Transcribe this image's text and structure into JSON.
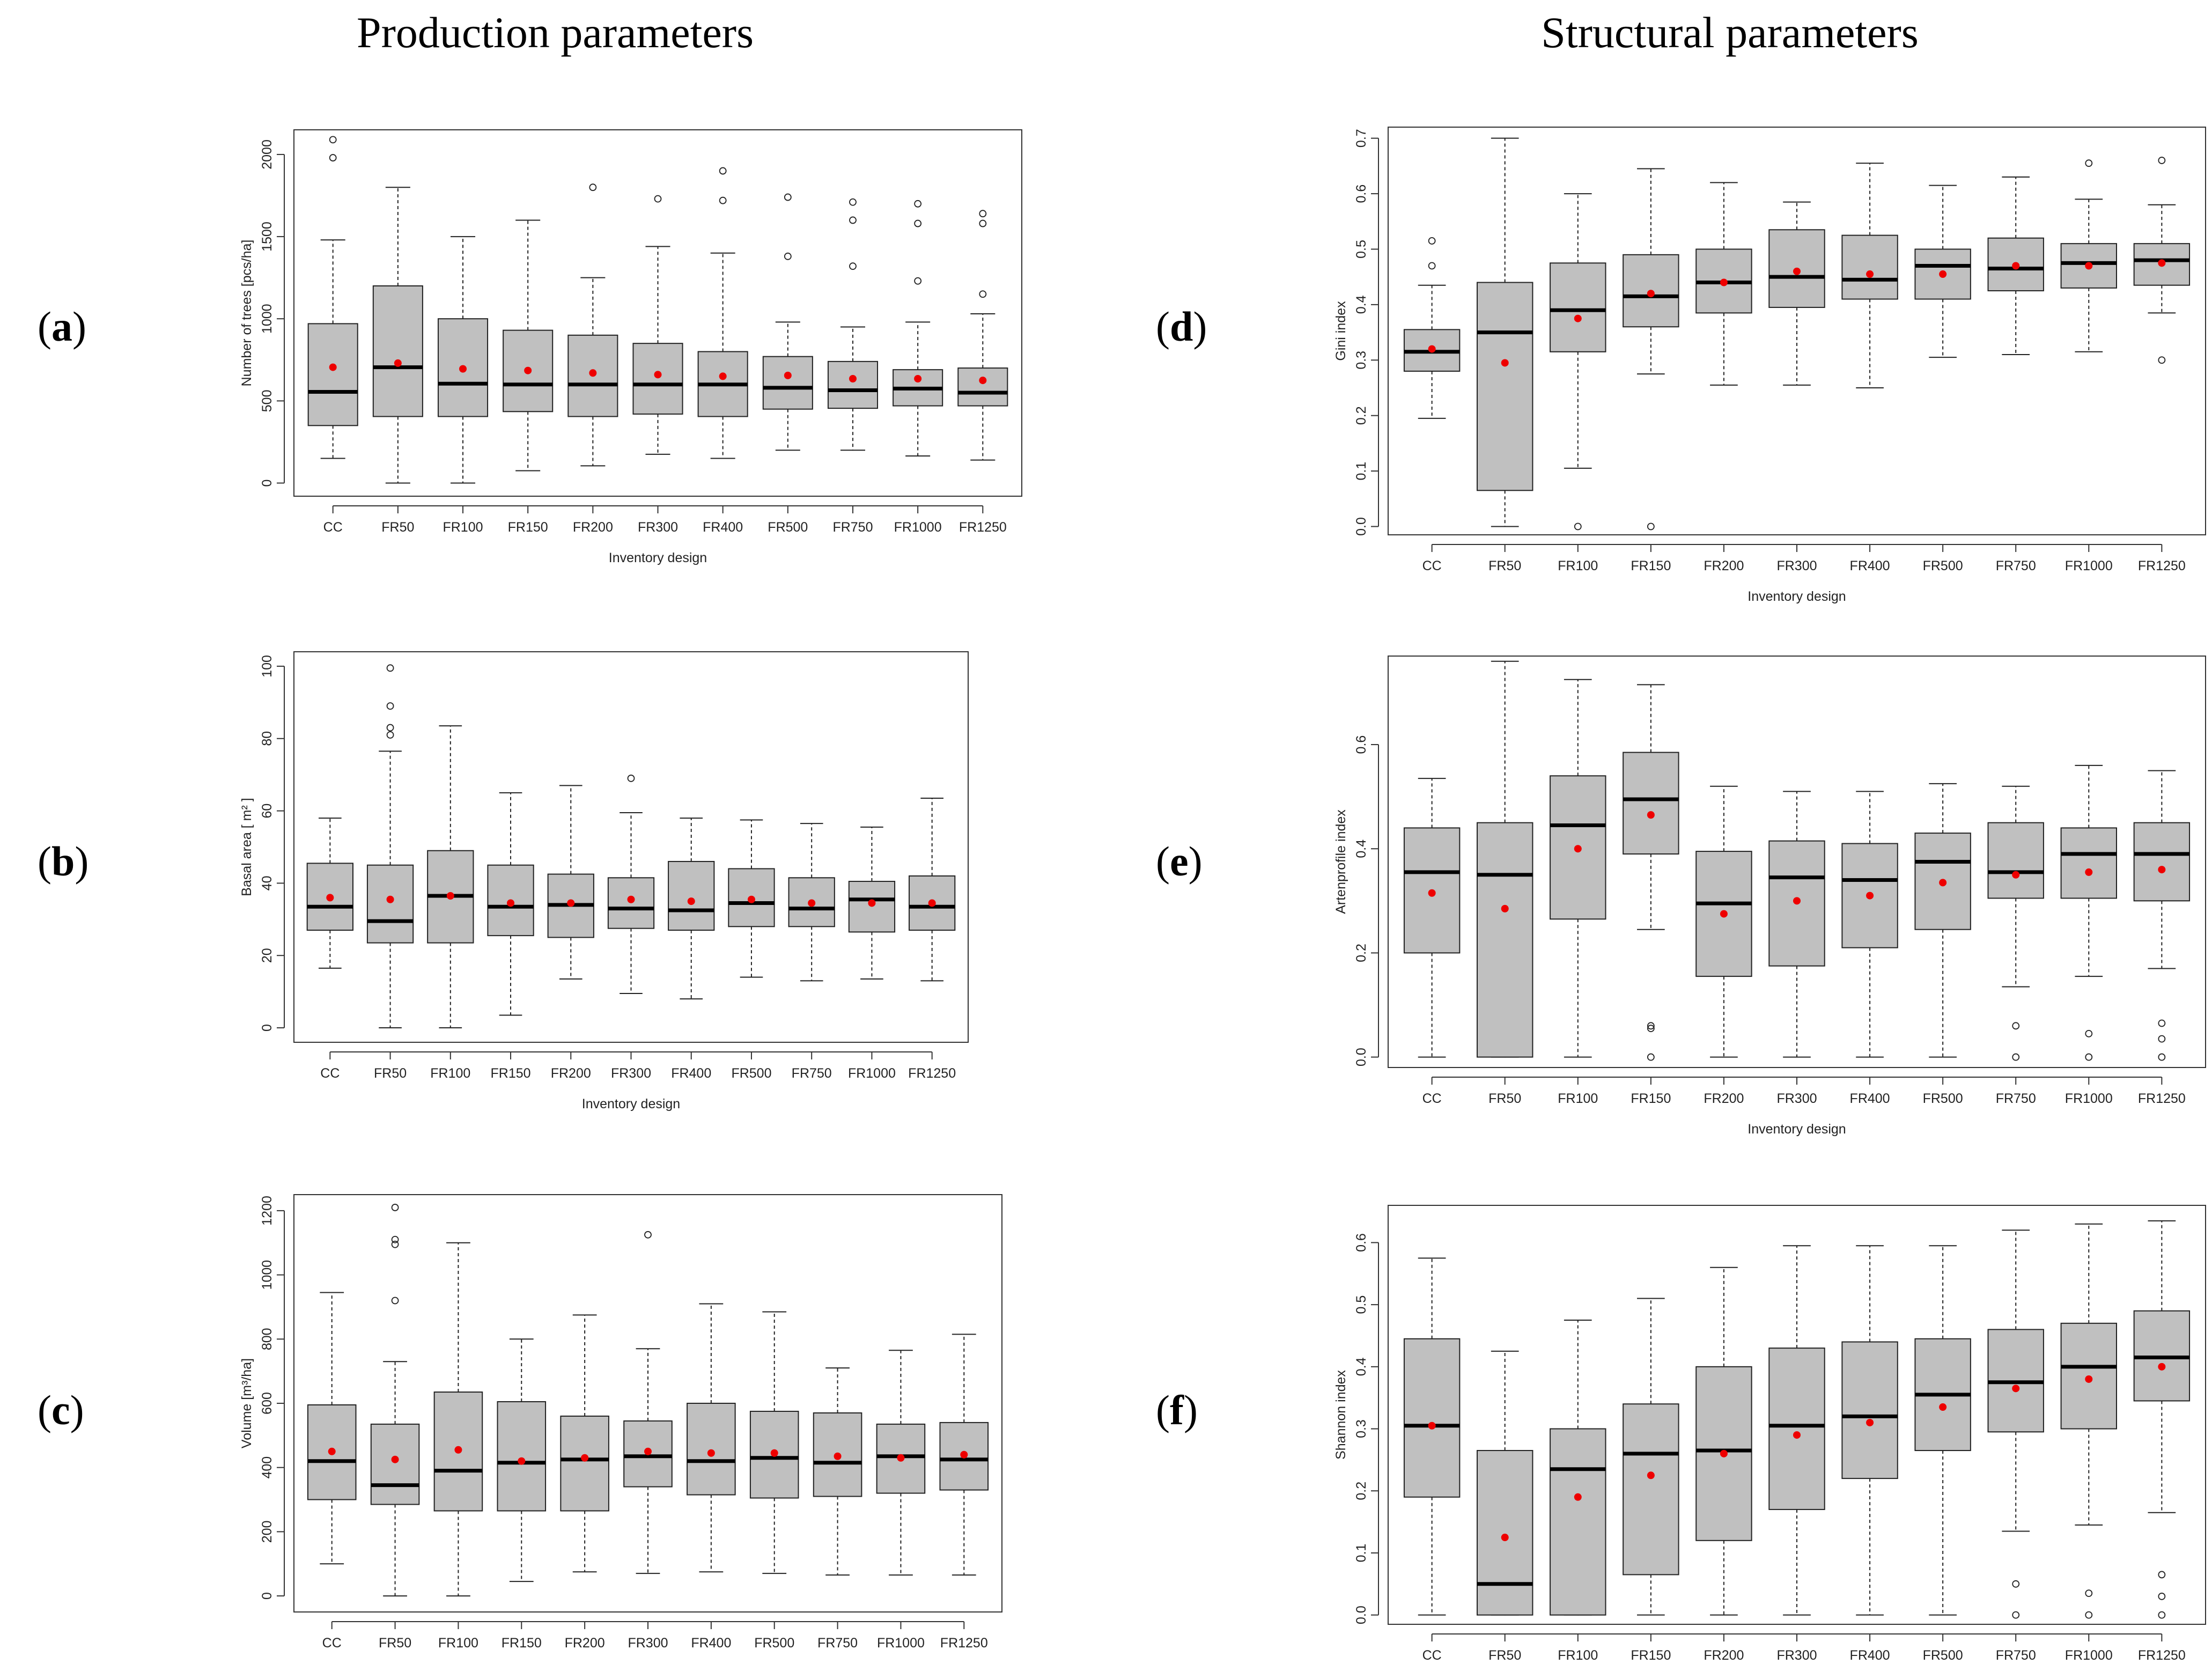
{
  "headings": {
    "left": "Production parameters",
    "right": "Structural parameters"
  },
  "colors": {
    "box_fill": "#c0c0c0",
    "median": "#000000",
    "mean": "#ee0000",
    "frame": "#333333"
  },
  "chart_data": [
    {
      "id": "a",
      "panel_label": "a",
      "type": "boxplot",
      "xlabel": "Inventory design",
      "ylabel": "Number of trees [pcs/ha]",
      "yticks": [
        0,
        500,
        1000,
        1500,
        2000
      ],
      "ylim": [
        -80,
        2150
      ],
      "categories": [
        "CC",
        "FR50",
        "FR100",
        "FR150",
        "FR200",
        "FR300",
        "FR400",
        "FR500",
        "FR750",
        "FR1000",
        "FR1250"
      ],
      "boxes": [
        {
          "min": 150,
          "q1": 350,
          "median": 555,
          "q3": 970,
          "max": 1480,
          "mean": 705,
          "outliers": [
            1980,
            2090
          ]
        },
        {
          "min": 0,
          "q1": 405,
          "median": 705,
          "q3": 1200,
          "max": 1800,
          "mean": 730,
          "outliers": []
        },
        {
          "min": 0,
          "q1": 405,
          "median": 605,
          "q3": 1000,
          "max": 1500,
          "mean": 695,
          "outliers": []
        },
        {
          "min": 75,
          "q1": 435,
          "median": 600,
          "q3": 930,
          "max": 1600,
          "mean": 685,
          "outliers": []
        },
        {
          "min": 105,
          "q1": 405,
          "median": 600,
          "q3": 900,
          "max": 1250,
          "mean": 670,
          "outliers": [
            1800
          ]
        },
        {
          "min": 175,
          "q1": 420,
          "median": 600,
          "q3": 850,
          "max": 1440,
          "mean": 660,
          "outliers": [
            1730
          ]
        },
        {
          "min": 150,
          "q1": 405,
          "median": 600,
          "q3": 800,
          "max": 1400,
          "mean": 650,
          "outliers": [
            1720,
            1900
          ]
        },
        {
          "min": 200,
          "q1": 450,
          "median": 580,
          "q3": 770,
          "max": 980,
          "mean": 655,
          "outliers": [
            1380,
            1740
          ]
        },
        {
          "min": 200,
          "q1": 455,
          "median": 565,
          "q3": 740,
          "max": 950,
          "mean": 635,
          "outliers": [
            1320,
            1600,
            1710
          ]
        },
        {
          "min": 165,
          "q1": 470,
          "median": 575,
          "q3": 690,
          "max": 980,
          "mean": 635,
          "outliers": [
            1230,
            1580,
            1700
          ]
        },
        {
          "min": 140,
          "q1": 470,
          "median": 550,
          "q3": 700,
          "max": 1030,
          "mean": 625,
          "outliers": [
            1150,
            1580,
            1640
          ]
        }
      ]
    },
    {
      "id": "b",
      "panel_label": "b",
      "type": "boxplot",
      "xlabel": "Inventory design",
      "ylabel": "Basal area [ m² ]",
      "yticks": [
        0,
        20,
        40,
        60,
        80,
        100
      ],
      "ylim": [
        -4,
        104
      ],
      "categories": [
        "CC",
        "FR50",
        "FR100",
        "FR150",
        "FR200",
        "FR300",
        "FR400",
        "FR500",
        "FR750",
        "FR1000",
        "FR1250"
      ],
      "boxes": [
        {
          "min": 16.5,
          "q1": 27,
          "median": 33.5,
          "q3": 45.5,
          "max": 58,
          "mean": 36,
          "outliers": []
        },
        {
          "min": 0,
          "q1": 23.5,
          "median": 29.5,
          "q3": 45,
          "max": 76.5,
          "mean": 35.5,
          "outliers": [
            81,
            83,
            89,
            99.5
          ]
        },
        {
          "min": 0,
          "q1": 23.5,
          "median": 36.5,
          "q3": 49,
          "max": 83.5,
          "mean": 36.5,
          "outliers": []
        },
        {
          "min": 3.5,
          "q1": 25.5,
          "median": 33.5,
          "q3": 45,
          "max": 65,
          "mean": 34.5,
          "outliers": []
        },
        {
          "min": 13.5,
          "q1": 25,
          "median": 34,
          "q3": 42.5,
          "max": 67,
          "mean": 34.5,
          "outliers": []
        },
        {
          "min": 9.5,
          "q1": 27.5,
          "median": 33,
          "q3": 41.5,
          "max": 59.5,
          "mean": 35.5,
          "outliers": [
            69
          ]
        },
        {
          "min": 8,
          "q1": 27,
          "median": 32.5,
          "q3": 46,
          "max": 58,
          "mean": 35,
          "outliers": []
        },
        {
          "min": 14,
          "q1": 28,
          "median": 34.5,
          "q3": 44,
          "max": 57.5,
          "mean": 35.5,
          "outliers": []
        },
        {
          "min": 13,
          "q1": 28,
          "median": 33,
          "q3": 41.5,
          "max": 56.5,
          "mean": 34.5,
          "outliers": []
        },
        {
          "min": 13.5,
          "q1": 26.5,
          "median": 35.5,
          "q3": 40.5,
          "max": 55.5,
          "mean": 34.5,
          "outliers": []
        },
        {
          "min": 13,
          "q1": 27,
          "median": 33.5,
          "q3": 42,
          "max": 63.5,
          "mean": 34.5,
          "outliers": []
        }
      ]
    },
    {
      "id": "c",
      "panel_label": "c",
      "type": "boxplot",
      "xlabel": "Inventory design",
      "ylabel": "Volume [m³/ha]",
      "yticks": [
        0,
        200,
        400,
        600,
        800,
        1000,
        1200
      ],
      "ylim": [
        -50,
        1250
      ],
      "categories": [
        "CC",
        "FR50",
        "FR100",
        "FR150",
        "FR200",
        "FR300",
        "FR400",
        "FR500",
        "FR750",
        "FR1000",
        "FR1250"
      ],
      "boxes": [
        {
          "min": 100,
          "q1": 300,
          "median": 420,
          "q3": 595,
          "max": 945,
          "mean": 450,
          "outliers": []
        },
        {
          "min": 0,
          "q1": 285,
          "median": 345,
          "q3": 535,
          "max": 730,
          "mean": 425,
          "outliers": [
            920,
            1095,
            1110,
            1210
          ]
        },
        {
          "min": 0,
          "q1": 265,
          "median": 390,
          "q3": 635,
          "max": 1100,
          "mean": 455,
          "outliers": []
        },
        {
          "min": 45,
          "q1": 265,
          "median": 415,
          "q3": 605,
          "max": 800,
          "mean": 420,
          "outliers": []
        },
        {
          "min": 75,
          "q1": 265,
          "median": 425,
          "q3": 560,
          "max": 875,
          "mean": 430,
          "outliers": []
        },
        {
          "min": 70,
          "q1": 340,
          "median": 435,
          "q3": 545,
          "max": 770,
          "mean": 450,
          "outliers": [
            1125
          ]
        },
        {
          "min": 75,
          "q1": 315,
          "median": 420,
          "q3": 600,
          "max": 910,
          "mean": 445,
          "outliers": []
        },
        {
          "min": 70,
          "q1": 305,
          "median": 430,
          "q3": 575,
          "max": 885,
          "mean": 445,
          "outliers": []
        },
        {
          "min": 65,
          "q1": 310,
          "median": 415,
          "q3": 570,
          "max": 710,
          "mean": 435,
          "outliers": []
        },
        {
          "min": 65,
          "q1": 320,
          "median": 435,
          "q3": 535,
          "max": 765,
          "mean": 430,
          "outliers": []
        },
        {
          "min": 65,
          "q1": 330,
          "median": 425,
          "q3": 540,
          "max": 815,
          "mean": 440,
          "outliers": []
        }
      ]
    },
    {
      "id": "d",
      "panel_label": "d",
      "type": "boxplot",
      "xlabel": "Inventory design",
      "ylabel": "Gini index",
      "yticks": [
        0.0,
        0.1,
        0.2,
        0.3,
        0.4,
        0.5,
        0.6,
        0.7
      ],
      "ylim": [
        -0.015,
        0.72
      ],
      "categories": [
        "CC",
        "FR50",
        "FR100",
        "FR150",
        "FR200",
        "FR300",
        "FR400",
        "FR500",
        "FR750",
        "FR1000",
        "FR1250"
      ],
      "boxes": [
        {
          "min": 0.195,
          "q1": 0.28,
          "median": 0.315,
          "q3": 0.355,
          "max": 0.435,
          "mean": 0.32,
          "outliers": [
            0.47,
            0.515
          ]
        },
        {
          "min": 0.0,
          "q1": 0.065,
          "median": 0.35,
          "q3": 0.44,
          "max": 0.7,
          "mean": 0.295,
          "outliers": []
        },
        {
          "min": 0.105,
          "q1": 0.315,
          "median": 0.39,
          "q3": 0.475,
          "max": 0.6,
          "mean": 0.375,
          "outliers": [
            0.0
          ]
        },
        {
          "min": 0.275,
          "q1": 0.36,
          "median": 0.415,
          "q3": 0.49,
          "max": 0.645,
          "mean": 0.42,
          "outliers": [
            0.0
          ]
        },
        {
          "min": 0.255,
          "q1": 0.385,
          "median": 0.44,
          "q3": 0.5,
          "max": 0.62,
          "mean": 0.44,
          "outliers": []
        },
        {
          "min": 0.255,
          "q1": 0.395,
          "median": 0.45,
          "q3": 0.535,
          "max": 0.585,
          "mean": 0.46,
          "outliers": []
        },
        {
          "min": 0.25,
          "q1": 0.41,
          "median": 0.445,
          "q3": 0.525,
          "max": 0.655,
          "mean": 0.455,
          "outliers": []
        },
        {
          "min": 0.305,
          "q1": 0.41,
          "median": 0.47,
          "q3": 0.5,
          "max": 0.615,
          "mean": 0.455,
          "outliers": []
        },
        {
          "min": 0.31,
          "q1": 0.425,
          "median": 0.465,
          "q3": 0.52,
          "max": 0.63,
          "mean": 0.47,
          "outliers": []
        },
        {
          "min": 0.315,
          "q1": 0.43,
          "median": 0.475,
          "q3": 0.51,
          "max": 0.59,
          "mean": 0.47,
          "outliers": [
            0.655
          ]
        },
        {
          "min": 0.385,
          "q1": 0.435,
          "median": 0.48,
          "q3": 0.51,
          "max": 0.58,
          "mean": 0.475,
          "outliers": [
            0.3,
            0.66
          ]
        }
      ]
    },
    {
      "id": "e",
      "panel_label": "e",
      "type": "boxplot",
      "xlabel": "Inventory design",
      "ylabel": "Artenprofile index",
      "yticks": [
        0.0,
        0.2,
        0.4,
        0.6
      ],
      "ylim": [
        -0.02,
        0.77
      ],
      "categories": [
        "CC",
        "FR50",
        "FR100",
        "FR150",
        "FR200",
        "FR300",
        "FR400",
        "FR500",
        "FR750",
        "FR1000",
        "FR1250"
      ],
      "boxes": [
        {
          "min": 0.0,
          "q1": 0.2,
          "median": 0.355,
          "q3": 0.44,
          "max": 0.535,
          "mean": 0.315,
          "outliers": []
        },
        {
          "min": 0.0,
          "q1": 0.0,
          "median": 0.35,
          "q3": 0.45,
          "max": 0.76,
          "mean": 0.285,
          "outliers": []
        },
        {
          "min": 0.0,
          "q1": 0.265,
          "median": 0.445,
          "q3": 0.54,
          "max": 0.725,
          "mean": 0.4,
          "outliers": []
        },
        {
          "min": 0.245,
          "q1": 0.39,
          "median": 0.495,
          "q3": 0.585,
          "max": 0.715,
          "mean": 0.465,
          "outliers": [
            0.0,
            0.055,
            0.06
          ]
        },
        {
          "min": 0.0,
          "q1": 0.155,
          "median": 0.295,
          "q3": 0.395,
          "max": 0.52,
          "mean": 0.275,
          "outliers": []
        },
        {
          "min": 0.0,
          "q1": 0.175,
          "median": 0.345,
          "q3": 0.415,
          "max": 0.51,
          "mean": 0.3,
          "outliers": []
        },
        {
          "min": 0.0,
          "q1": 0.21,
          "median": 0.34,
          "q3": 0.41,
          "max": 0.51,
          "mean": 0.31,
          "outliers": []
        },
        {
          "min": 0.0,
          "q1": 0.245,
          "median": 0.375,
          "q3": 0.43,
          "max": 0.525,
          "mean": 0.335,
          "outliers": []
        },
        {
          "min": 0.135,
          "q1": 0.305,
          "median": 0.355,
          "q3": 0.45,
          "max": 0.52,
          "mean": 0.35,
          "outliers": [
            0.0,
            0.06
          ]
        },
        {
          "min": 0.155,
          "q1": 0.305,
          "median": 0.39,
          "q3": 0.44,
          "max": 0.56,
          "mean": 0.355,
          "outliers": [
            0.0,
            0.045
          ]
        },
        {
          "min": 0.17,
          "q1": 0.3,
          "median": 0.39,
          "q3": 0.45,
          "max": 0.55,
          "mean": 0.36,
          "outliers": [
            0.0,
            0.035,
            0.065
          ]
        }
      ]
    },
    {
      "id": "f",
      "panel_label": "f",
      "type": "boxplot",
      "xlabel": "Inventory design",
      "ylabel": "Shannon index",
      "yticks": [
        0.0,
        0.1,
        0.2,
        0.3,
        0.4,
        0.5,
        0.6
      ],
      "ylim": [
        -0.015,
        0.66
      ],
      "categories": [
        "CC",
        "FR50",
        "FR100",
        "FR150",
        "FR200",
        "FR300",
        "FR400",
        "FR500",
        "FR750",
        "FR1000",
        "FR1250"
      ],
      "boxes": [
        {
          "min": 0.0,
          "q1": 0.19,
          "median": 0.305,
          "q3": 0.445,
          "max": 0.575,
          "mean": 0.305,
          "outliers": []
        },
        {
          "min": 0.0,
          "q1": 0.0,
          "median": 0.05,
          "q3": 0.265,
          "max": 0.425,
          "mean": 0.125,
          "outliers": []
        },
        {
          "min": 0.0,
          "q1": 0.0,
          "median": 0.235,
          "q3": 0.3,
          "max": 0.475,
          "mean": 0.19,
          "outliers": []
        },
        {
          "min": 0.0,
          "q1": 0.065,
          "median": 0.26,
          "q3": 0.34,
          "max": 0.51,
          "mean": 0.225,
          "outliers": []
        },
        {
          "min": 0.0,
          "q1": 0.12,
          "median": 0.265,
          "q3": 0.4,
          "max": 0.56,
          "mean": 0.26,
          "outliers": []
        },
        {
          "min": 0.0,
          "q1": 0.17,
          "median": 0.305,
          "q3": 0.43,
          "max": 0.595,
          "mean": 0.29,
          "outliers": []
        },
        {
          "min": 0.0,
          "q1": 0.22,
          "median": 0.32,
          "q3": 0.44,
          "max": 0.595,
          "mean": 0.31,
          "outliers": []
        },
        {
          "min": 0.0,
          "q1": 0.265,
          "median": 0.355,
          "q3": 0.445,
          "max": 0.595,
          "mean": 0.335,
          "outliers": []
        },
        {
          "min": 0.135,
          "q1": 0.295,
          "median": 0.375,
          "q3": 0.46,
          "max": 0.62,
          "mean": 0.365,
          "outliers": [
            0.0,
            0.05
          ]
        },
        {
          "min": 0.145,
          "q1": 0.3,
          "median": 0.4,
          "q3": 0.47,
          "max": 0.63,
          "mean": 0.38,
          "outliers": [
            0.0,
            0.035
          ]
        },
        {
          "min": 0.165,
          "q1": 0.345,
          "median": 0.415,
          "q3": 0.49,
          "max": 0.635,
          "mean": 0.4,
          "outliers": [
            0.0,
            0.03,
            0.065
          ]
        }
      ]
    }
  ]
}
